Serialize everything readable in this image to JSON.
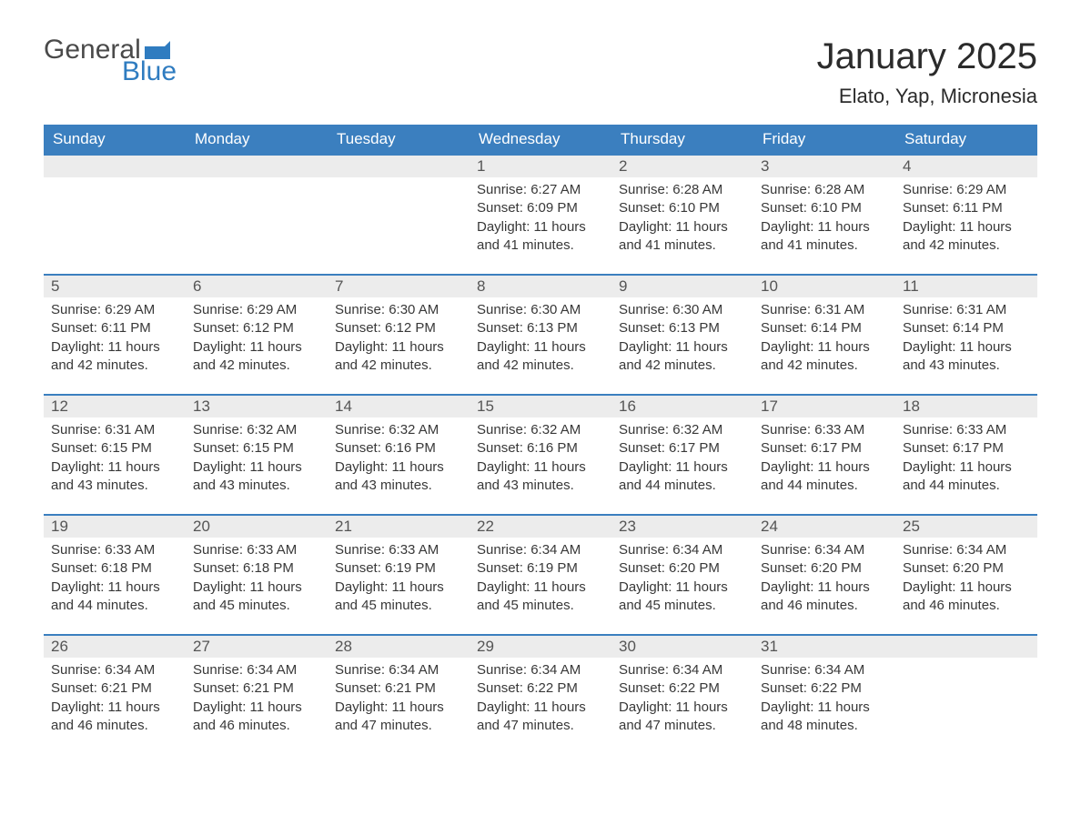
{
  "logo": {
    "general": "General",
    "blue": "Blue",
    "flag_color": "#2f7cc0"
  },
  "header": {
    "month_title": "January 2025",
    "location": "Elato, Yap, Micronesia"
  },
  "colors": {
    "header_bg": "#3b7fbf",
    "header_text": "#ffffff",
    "row_stripe": "#ececec",
    "row_border": "#3b7fbf",
    "body_text": "#383838",
    "logo_blue": "#2f7cc0",
    "logo_gray": "#4a4a4a",
    "page_bg": "#ffffff"
  },
  "weekdays": [
    "Sunday",
    "Monday",
    "Tuesday",
    "Wednesday",
    "Thursday",
    "Friday",
    "Saturday"
  ],
  "labels": {
    "sunrise": "Sunrise:",
    "sunset": "Sunset:",
    "daylight": "Daylight:"
  },
  "weeks": [
    [
      null,
      null,
      null,
      {
        "n": "1",
        "sunrise": "6:27 AM",
        "sunset": "6:09 PM",
        "daylight": "11 hours and 41 minutes."
      },
      {
        "n": "2",
        "sunrise": "6:28 AM",
        "sunset": "6:10 PM",
        "daylight": "11 hours and 41 minutes."
      },
      {
        "n": "3",
        "sunrise": "6:28 AM",
        "sunset": "6:10 PM",
        "daylight": "11 hours and 41 minutes."
      },
      {
        "n": "4",
        "sunrise": "6:29 AM",
        "sunset": "6:11 PM",
        "daylight": "11 hours and 42 minutes."
      }
    ],
    [
      {
        "n": "5",
        "sunrise": "6:29 AM",
        "sunset": "6:11 PM",
        "daylight": "11 hours and 42 minutes."
      },
      {
        "n": "6",
        "sunrise": "6:29 AM",
        "sunset": "6:12 PM",
        "daylight": "11 hours and 42 minutes."
      },
      {
        "n": "7",
        "sunrise": "6:30 AM",
        "sunset": "6:12 PM",
        "daylight": "11 hours and 42 minutes."
      },
      {
        "n": "8",
        "sunrise": "6:30 AM",
        "sunset": "6:13 PM",
        "daylight": "11 hours and 42 minutes."
      },
      {
        "n": "9",
        "sunrise": "6:30 AM",
        "sunset": "6:13 PM",
        "daylight": "11 hours and 42 minutes."
      },
      {
        "n": "10",
        "sunrise": "6:31 AM",
        "sunset": "6:14 PM",
        "daylight": "11 hours and 42 minutes."
      },
      {
        "n": "11",
        "sunrise": "6:31 AM",
        "sunset": "6:14 PM",
        "daylight": "11 hours and 43 minutes."
      }
    ],
    [
      {
        "n": "12",
        "sunrise": "6:31 AM",
        "sunset": "6:15 PM",
        "daylight": "11 hours and 43 minutes."
      },
      {
        "n": "13",
        "sunrise": "6:32 AM",
        "sunset": "6:15 PM",
        "daylight": "11 hours and 43 minutes."
      },
      {
        "n": "14",
        "sunrise": "6:32 AM",
        "sunset": "6:16 PM",
        "daylight": "11 hours and 43 minutes."
      },
      {
        "n": "15",
        "sunrise": "6:32 AM",
        "sunset": "6:16 PM",
        "daylight": "11 hours and 43 minutes."
      },
      {
        "n": "16",
        "sunrise": "6:32 AM",
        "sunset": "6:17 PM",
        "daylight": "11 hours and 44 minutes."
      },
      {
        "n": "17",
        "sunrise": "6:33 AM",
        "sunset": "6:17 PM",
        "daylight": "11 hours and 44 minutes."
      },
      {
        "n": "18",
        "sunrise": "6:33 AM",
        "sunset": "6:17 PM",
        "daylight": "11 hours and 44 minutes."
      }
    ],
    [
      {
        "n": "19",
        "sunrise": "6:33 AM",
        "sunset": "6:18 PM",
        "daylight": "11 hours and 44 minutes."
      },
      {
        "n": "20",
        "sunrise": "6:33 AM",
        "sunset": "6:18 PM",
        "daylight": "11 hours and 45 minutes."
      },
      {
        "n": "21",
        "sunrise": "6:33 AM",
        "sunset": "6:19 PM",
        "daylight": "11 hours and 45 minutes."
      },
      {
        "n": "22",
        "sunrise": "6:34 AM",
        "sunset": "6:19 PM",
        "daylight": "11 hours and 45 minutes."
      },
      {
        "n": "23",
        "sunrise": "6:34 AM",
        "sunset": "6:20 PM",
        "daylight": "11 hours and 45 minutes."
      },
      {
        "n": "24",
        "sunrise": "6:34 AM",
        "sunset": "6:20 PM",
        "daylight": "11 hours and 46 minutes."
      },
      {
        "n": "25",
        "sunrise": "6:34 AM",
        "sunset": "6:20 PM",
        "daylight": "11 hours and 46 minutes."
      }
    ],
    [
      {
        "n": "26",
        "sunrise": "6:34 AM",
        "sunset": "6:21 PM",
        "daylight": "11 hours and 46 minutes."
      },
      {
        "n": "27",
        "sunrise": "6:34 AM",
        "sunset": "6:21 PM",
        "daylight": "11 hours and 46 minutes."
      },
      {
        "n": "28",
        "sunrise": "6:34 AM",
        "sunset": "6:21 PM",
        "daylight": "11 hours and 47 minutes."
      },
      {
        "n": "29",
        "sunrise": "6:34 AM",
        "sunset": "6:22 PM",
        "daylight": "11 hours and 47 minutes."
      },
      {
        "n": "30",
        "sunrise": "6:34 AM",
        "sunset": "6:22 PM",
        "daylight": "11 hours and 47 minutes."
      },
      {
        "n": "31",
        "sunrise": "6:34 AM",
        "sunset": "6:22 PM",
        "daylight": "11 hours and 48 minutes."
      },
      null
    ]
  ]
}
